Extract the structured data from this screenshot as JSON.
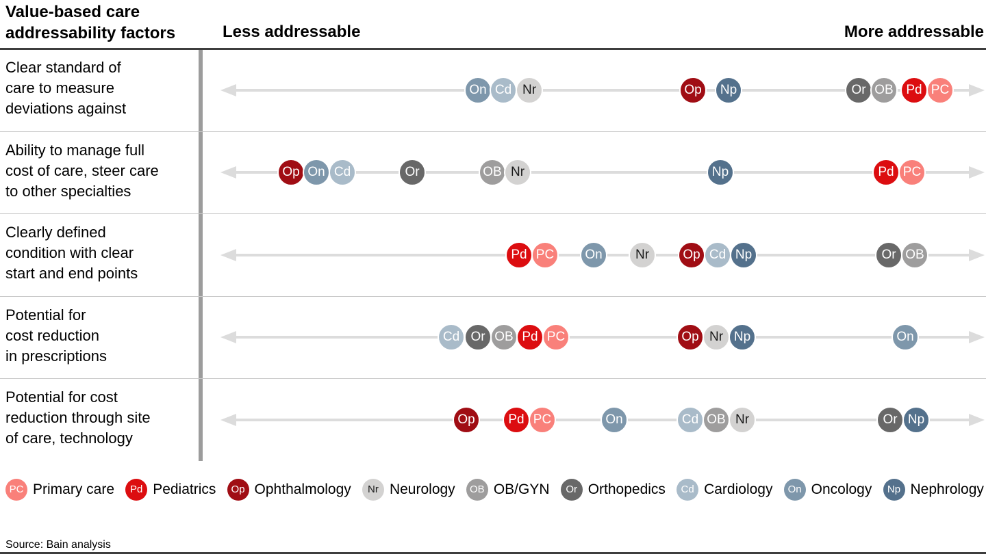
{
  "header": {
    "title": "Value-based care\naddressability factors"
  },
  "footer": {
    "source": "Source: Bain analysis"
  },
  "legend": [
    {
      "code": "PC",
      "label": "Primary care",
      "color": "#f9807a",
      "text_color": "#ffffff"
    },
    {
      "code": "Pd",
      "label": "Pediatrics",
      "color": "#dc0d10",
      "text_color": "#ffffff"
    },
    {
      "code": "Op",
      "label": "Ophthalmology",
      "color": "#a00d14",
      "text_color": "#ffffff"
    },
    {
      "code": "Nr",
      "label": "Neurology",
      "color": "#d3d2d1",
      "text_color": "#1a1a1a"
    },
    {
      "code": "OB",
      "label": "OB/GYN",
      "color": "#9e9d9d",
      "text_color": "#ffffff"
    },
    {
      "code": "Or",
      "label": "Orthopedics",
      "color": "#686868",
      "text_color": "#ffffff"
    },
    {
      "code": "Cd",
      "label": "Cardiology",
      "color": "#a9bbc9",
      "text_color": "#ffffff"
    },
    {
      "code": "On",
      "label": "Oncology",
      "color": "#7e97ab",
      "text_color": "#ffffff"
    },
    {
      "code": "Np",
      "label": "Nephrology",
      "color": "#54718c",
      "text_color": "#ffffff"
    }
  ],
  "chart_data": {
    "type": "scatter",
    "title": "Value-based care addressability factors",
    "axis": {
      "left_label": "Less addressable",
      "right_label": "More addressable",
      "scale": "qualitative addressability, pos = percent along axis (0 = least, 100 = most addressable)"
    },
    "rows": [
      {
        "label": "Clear standard of\ncare to measure\ndeviations against",
        "dots": [
          {
            "code": "On",
            "pos": 33.5
          },
          {
            "code": "Cd",
            "pos": 36.9
          },
          {
            "code": "Nr",
            "pos": 40.3
          },
          {
            "code": "Op",
            "pos": 61.8
          },
          {
            "code": "Np",
            "pos": 66.5
          },
          {
            "code": "Or",
            "pos": 83.5
          },
          {
            "code": "OB",
            "pos": 86.9
          },
          {
            "code": "Pd",
            "pos": 90.8
          },
          {
            "code": "PC",
            "pos": 94.2
          }
        ]
      },
      {
        "label": "Ability to manage full\ncost of care, steer care\nto other specialties",
        "dots": [
          {
            "code": "Op",
            "pos": 9.0
          },
          {
            "code": "On",
            "pos": 12.3
          },
          {
            "code": "Cd",
            "pos": 15.7
          },
          {
            "code": "Or",
            "pos": 24.9
          },
          {
            "code": "OB",
            "pos": 35.4
          },
          {
            "code": "Nr",
            "pos": 38.8
          },
          {
            "code": "Np",
            "pos": 65.4
          },
          {
            "code": "Pd",
            "pos": 87.1
          },
          {
            "code": "PC",
            "pos": 90.6
          }
        ]
      },
      {
        "label": "Clearly defined\ncondition with clear\nstart and end points",
        "dots": [
          {
            "code": "Pd",
            "pos": 38.9
          },
          {
            "code": "PC",
            "pos": 42.4
          },
          {
            "code": "On",
            "pos": 48.7
          },
          {
            "code": "Nr",
            "pos": 55.1
          },
          {
            "code": "Op",
            "pos": 61.6
          },
          {
            "code": "Cd",
            "pos": 65.0
          },
          {
            "code": "Np",
            "pos": 68.4
          },
          {
            "code": "Or",
            "pos": 87.5
          },
          {
            "code": "OB",
            "pos": 90.9
          }
        ]
      },
      {
        "label": "Potential for\ncost reduction\nin prescriptions",
        "dots": [
          {
            "code": "Cd",
            "pos": 30.0
          },
          {
            "code": "Or",
            "pos": 33.5
          },
          {
            "code": "OB",
            "pos": 37.0
          },
          {
            "code": "Pd",
            "pos": 40.4
          },
          {
            "code": "PC",
            "pos": 43.8
          },
          {
            "code": "Op",
            "pos": 61.4
          },
          {
            "code": "Nr",
            "pos": 64.8
          },
          {
            "code": "Np",
            "pos": 68.3
          },
          {
            "code": "On",
            "pos": 89.7
          }
        ]
      },
      {
        "label": "Potential for cost\nreduction through site\nof care, technology",
        "dots": [
          {
            "code": "Op",
            "pos": 32.0
          },
          {
            "code": "Pd",
            "pos": 38.6
          },
          {
            "code": "PC",
            "pos": 42.0
          },
          {
            "code": "On",
            "pos": 51.4
          },
          {
            "code": "Cd",
            "pos": 61.4
          },
          {
            "code": "OB",
            "pos": 64.8
          },
          {
            "code": "Nr",
            "pos": 68.3
          },
          {
            "code": "Or",
            "pos": 87.7
          },
          {
            "code": "Np",
            "pos": 91.1
          }
        ]
      }
    ]
  }
}
